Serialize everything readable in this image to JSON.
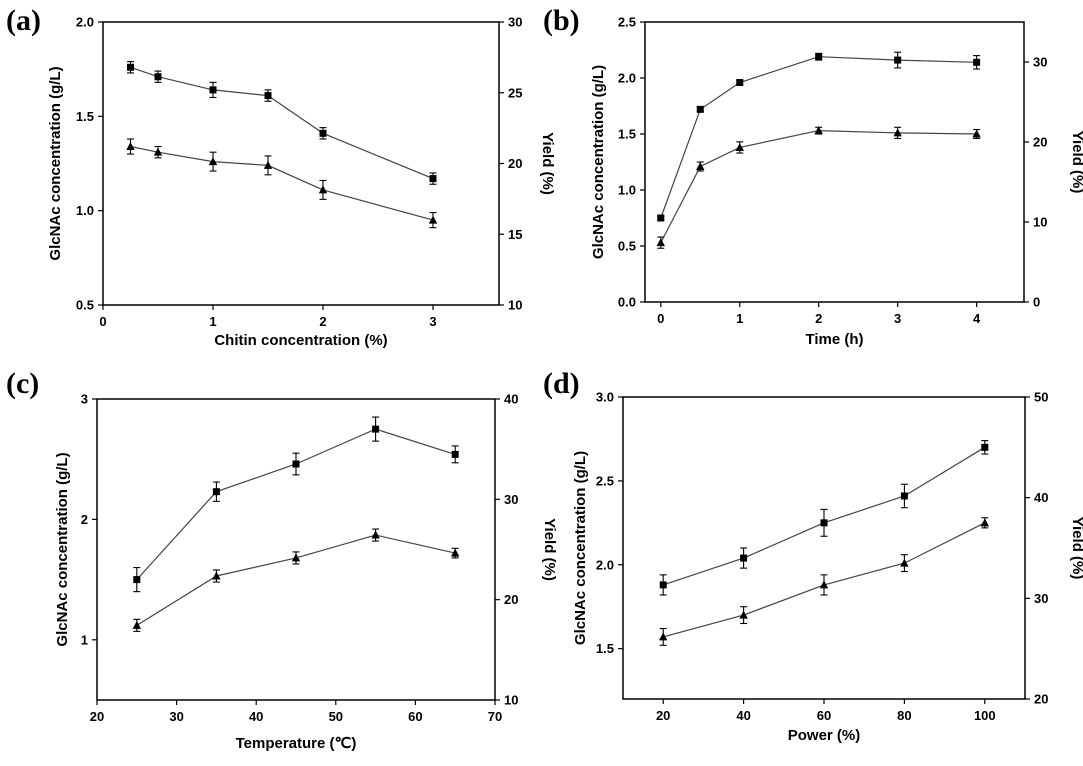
{
  "chart_data": [
    {
      "id": "a",
      "type": "line",
      "panel_label": "(a)",
      "xlabel": "Chitin concentration (%)",
      "ylabel": "GlcNAc concentration (g/L)",
      "y2label": "Yield (%)",
      "xlim": [
        0,
        3.6
      ],
      "ylim": [
        0.5,
        2.0
      ],
      "y2lim": [
        10,
        30
      ],
      "xticks": [
        0,
        1,
        2,
        3
      ],
      "yticks": [
        0.5,
        1.0,
        1.5,
        2.0
      ],
      "ytick_labels": [
        "0.5",
        "1.0",
        "1.5",
        "2.0"
      ],
      "y2ticks": [
        10,
        15,
        20,
        25,
        30
      ],
      "y2tick_labels": [
        "10",
        "15",
        "20",
        "25",
        "30"
      ],
      "grid": false,
      "series": [
        {
          "axis": "left",
          "marker": "square",
          "x": [
            0.25,
            0.5,
            1,
            1.5,
            2,
            3
          ],
          "values": [
            1.76,
            1.71,
            1.64,
            1.61,
            1.41,
            1.17
          ],
          "error": [
            0.03,
            0.03,
            0.04,
            0.03,
            0.03,
            0.03
          ]
        },
        {
          "axis": "left",
          "marker": "triangle",
          "x": [
            0.25,
            0.5,
            1,
            1.5,
            2,
            3
          ],
          "values": [
            1.34,
            1.31,
            1.26,
            1.24,
            1.11,
            0.95
          ],
          "error": [
            0.04,
            0.03,
            0.05,
            0.05,
            0.05,
            0.04
          ]
        }
      ]
    },
    {
      "id": "b",
      "type": "line",
      "panel_label": "(b)",
      "xlabel": "Time (h)",
      "ylabel": "GlcNAc concentration (g/L)",
      "y2label": "Yield (%)",
      "xlim": [
        -0.2,
        4.6
      ],
      "ylim": [
        0.0,
        2.5
      ],
      "y2lim": [
        0,
        35
      ],
      "xticks": [
        0,
        1,
        2,
        3,
        4
      ],
      "yticks": [
        0.0,
        0.5,
        1.0,
        1.5,
        2.0,
        2.5
      ],
      "ytick_labels": [
        "0.0",
        "0.5",
        "1.0",
        "1.5",
        "2.0",
        "2.5"
      ],
      "y2ticks": [
        0,
        10,
        20,
        30
      ],
      "y2tick_labels": [
        "0",
        "10",
        "20",
        "30"
      ],
      "grid": false,
      "series": [
        {
          "axis": "left",
          "marker": "square",
          "x": [
            0,
            0.5,
            1,
            2,
            3,
            4
          ],
          "values": [
            0.75,
            1.72,
            1.96,
            2.19,
            2.16,
            2.14
          ],
          "error": [
            0.02,
            0.02,
            0.02,
            0.03,
            0.07,
            0.06
          ]
        },
        {
          "axis": "left",
          "marker": "triangle",
          "x": [
            0,
            0.5,
            1,
            2,
            3,
            4
          ],
          "values": [
            0.53,
            1.21,
            1.38,
            1.53,
            1.51,
            1.5
          ],
          "error": [
            0.05,
            0.04,
            0.05,
            0.03,
            0.05,
            0.04
          ]
        }
      ]
    },
    {
      "id": "c",
      "type": "line",
      "panel_label": "(c)",
      "xlabel": "Temperature (℃)",
      "ylabel": "GlcNAc concentration (g/L)",
      "y2label": "Yield (%)",
      "xlim": [
        20,
        70
      ],
      "ylim": [
        0.5,
        3.0
      ],
      "y2lim": [
        10,
        40
      ],
      "xticks": [
        20,
        30,
        40,
        50,
        60,
        70
      ],
      "yticks": [
        1,
        2,
        3
      ],
      "ytick_labels": [
        "1",
        "2",
        "3"
      ],
      "y2ticks": [
        10,
        20,
        30,
        40
      ],
      "y2tick_labels": [
        "10",
        "20",
        "30",
        "40"
      ],
      "grid": false,
      "series": [
        {
          "axis": "left",
          "marker": "square",
          "x": [
            25,
            35,
            45,
            55,
            65
          ],
          "values": [
            1.5,
            2.23,
            2.46,
            2.75,
            2.54
          ],
          "error": [
            0.1,
            0.08,
            0.09,
            0.1,
            0.07
          ]
        },
        {
          "axis": "left",
          "marker": "triangle",
          "x": [
            25,
            35,
            45,
            55,
            65
          ],
          "values": [
            1.12,
            1.53,
            1.68,
            1.87,
            1.72
          ],
          "error": [
            0.05,
            0.05,
            0.05,
            0.05,
            0.04
          ]
        }
      ]
    },
    {
      "id": "d",
      "type": "line",
      "panel_label": "(d)",
      "xlabel": "Power (%)",
      "ylabel": "GlcNAc concentration (g/L)",
      "y2label": "Yield (%)",
      "xlim": [
        10,
        110
      ],
      "ylim": [
        1.2,
        3.0
      ],
      "y2lim": [
        20,
        50
      ],
      "xticks": [
        20,
        40,
        60,
        80,
        100
      ],
      "yticks": [
        1.5,
        2.0,
        2.5,
        3.0
      ],
      "ytick_labels": [
        "1.5",
        "2.0",
        "2.5",
        "3.0"
      ],
      "y2ticks": [
        20,
        30,
        40,
        50
      ],
      "y2tick_labels": [
        "20",
        "30",
        "40",
        "50"
      ],
      "grid": false,
      "series": [
        {
          "axis": "left",
          "marker": "square",
          "x": [
            20,
            40,
            60,
            80,
            100
          ],
          "values": [
            1.88,
            2.04,
            2.25,
            2.41,
            2.7
          ],
          "error": [
            0.06,
            0.06,
            0.08,
            0.07,
            0.04
          ]
        },
        {
          "axis": "left",
          "marker": "triangle",
          "x": [
            20,
            40,
            60,
            80,
            100
          ],
          "values": [
            1.57,
            1.7,
            1.88,
            2.01,
            2.25
          ],
          "error": [
            0.05,
            0.05,
            0.06,
            0.05,
            0.03
          ]
        }
      ]
    }
  ]
}
